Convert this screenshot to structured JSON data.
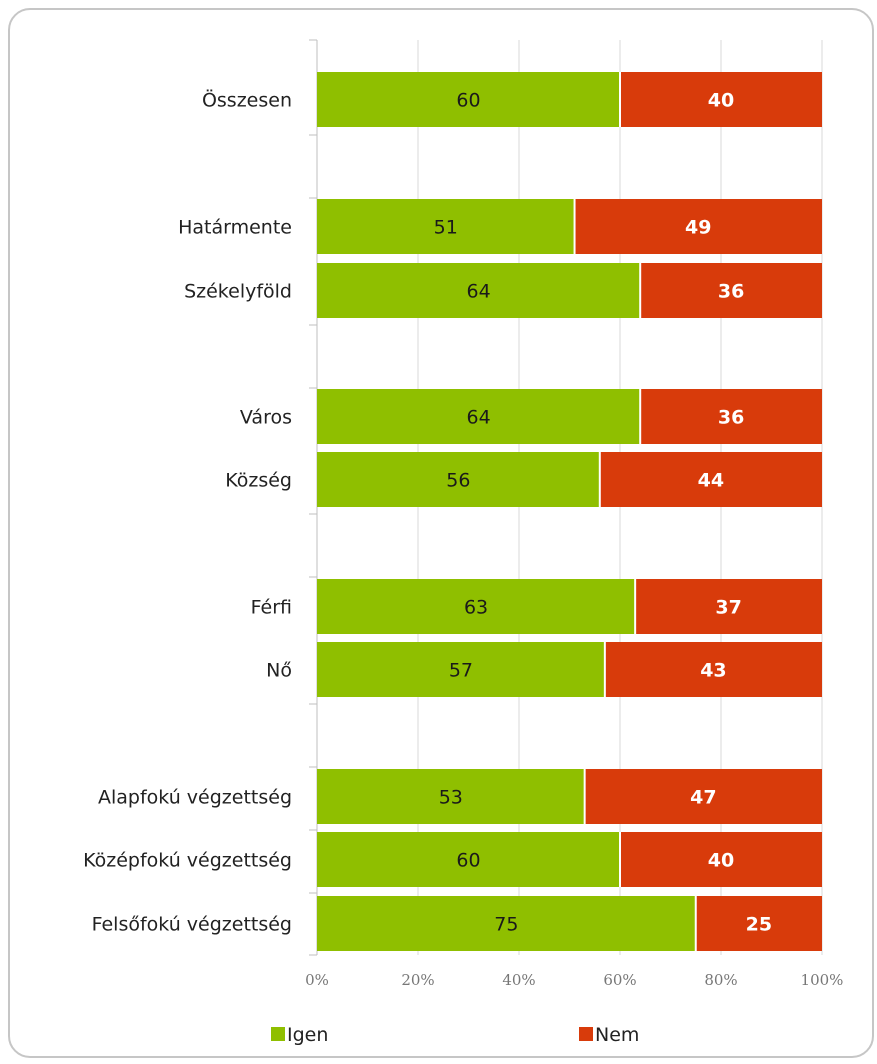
{
  "chart_data": {
    "type": "bar",
    "orientation": "horizontal",
    "stacked": "percent",
    "categories": [
      "Összesen",
      "Határmente",
      "Székelyföld",
      "Város",
      "Község",
      "Férfi",
      "Nő",
      "Alapfokú végzettség",
      "Középfokú végzettség",
      "Felsőfokú végzettség"
    ],
    "series": [
      {
        "name": "Igen",
        "color": "#8fbf00",
        "values": [
          60,
          51,
          64,
          64,
          56,
          63,
          57,
          53,
          60,
          75
        ]
      },
      {
        "name": "Nem",
        "color": "#d83b0b",
        "values": [
          40,
          49,
          36,
          36,
          44,
          37,
          43,
          47,
          40,
          25
        ]
      }
    ],
    "xlim": [
      0,
      100
    ],
    "x_ticks": [
      "0%",
      "20%",
      "40%",
      "60%",
      "80%",
      "100%"
    ],
    "grid": true,
    "legend_position": "bottom"
  }
}
